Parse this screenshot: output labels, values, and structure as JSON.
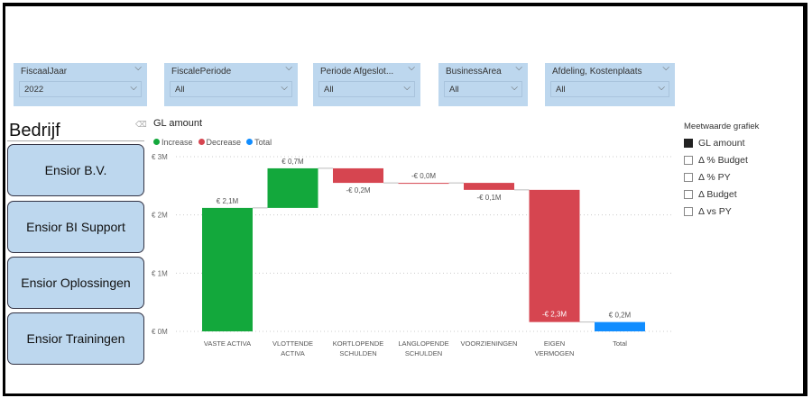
{
  "slicers": [
    {
      "label": "FiscaalJaar",
      "value": "2022"
    },
    {
      "label": "FiscalePeriode",
      "value": "All"
    },
    {
      "label": "Periode Afgeslot...",
      "value": "All"
    },
    {
      "label": "BusinessArea",
      "value": "All"
    },
    {
      "label": "Afdeling, Kostenplaats",
      "value": "All"
    }
  ],
  "bedrijf": {
    "title": "Bedrijf",
    "buttons": [
      "Ensior B.V.",
      "Ensior BI Support",
      "Ensior Oplossingen",
      "Ensior Trainingen"
    ]
  },
  "chart_title": "GL amount",
  "legend": [
    {
      "label": "Increase",
      "color": "#13a83c"
    },
    {
      "label": "Decrease",
      "color": "#d64550"
    },
    {
      "label": "Total",
      "color": "#118dff"
    }
  ],
  "measure": {
    "title": "Meetwaarde grafiek",
    "options": [
      {
        "label": "GL amount",
        "checked": true
      },
      {
        "label": "Δ % Budget",
        "checked": false
      },
      {
        "label": "Δ % PY",
        "checked": false
      },
      {
        "label": "Δ Budget",
        "checked": false
      },
      {
        "label": "Δ vs PY",
        "checked": false
      }
    ]
  },
  "chart_data": {
    "type": "waterfall",
    "title": "GL amount",
    "categories": [
      [
        "VASTE ACTIVA"
      ],
      [
        "VLOTTENDE",
        "ACTIVA"
      ],
      [
        "KORTLOPENDE",
        "SCHULDEN"
      ],
      [
        "LANGLOPENDE",
        "SCHULDEN"
      ],
      [
        "VOORZIENINGEN"
      ],
      [
        "EIGEN",
        "VERMOGEN"
      ],
      [
        "Total"
      ]
    ],
    "values": [
      2.12,
      0.68,
      -0.25,
      0.0,
      -0.12,
      -2.27,
      0.16
    ],
    "labels": [
      "€ 2,1M",
      "€ 0,7M",
      "-€ 0,2M",
      "-€ 0,0M",
      "-€ 0,1M",
      "-€ 2,3M",
      "€ 0,2M"
    ],
    "kinds": [
      "increase",
      "increase",
      "decrease",
      "decrease",
      "decrease",
      "decrease",
      "total"
    ],
    "yticks": [
      {
        "v": 0,
        "label": "€ 0M"
      },
      {
        "v": 1,
        "label": "€ 1M"
      },
      {
        "v": 2,
        "label": "€ 2M"
      },
      {
        "v": 3,
        "label": "€ 3M"
      }
    ],
    "ylim": [
      0,
      3
    ],
    "unit": "M EUR"
  }
}
